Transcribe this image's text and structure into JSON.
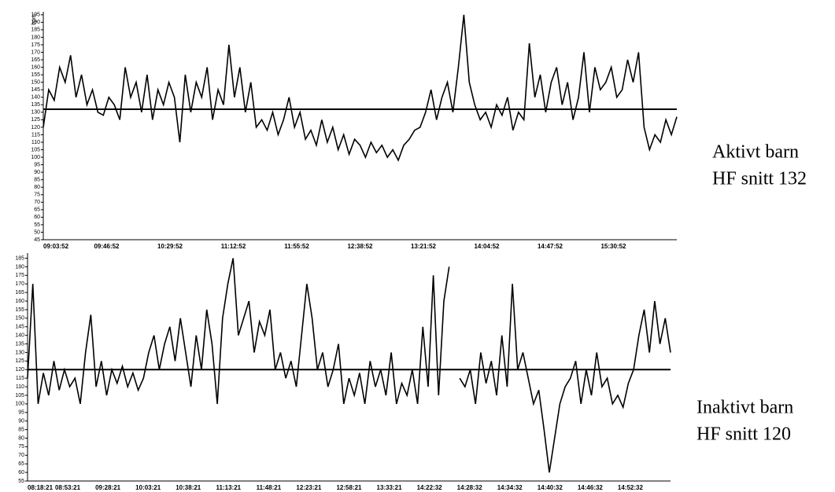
{
  "chart_data": [
    {
      "type": "line",
      "ylabel": "bpm",
      "color": "#000000",
      "x_labels": [
        "09:03:52",
        "09:46:52",
        "10:29:52",
        "11:12:52",
        "11:55:52",
        "12:38:52",
        "13:21:52",
        "14:04:52",
        "14:47:52",
        "15:30:52"
      ],
      "values": [
        120,
        145,
        138,
        160,
        150,
        168,
        140,
        155,
        135,
        145,
        130,
        128,
        140,
        135,
        125,
        160,
        140,
        150,
        130,
        155,
        125,
        145,
        135,
        150,
        140,
        110,
        155,
        130,
        150,
        140,
        160,
        125,
        145,
        135,
        175,
        140,
        160,
        130,
        150,
        120,
        125,
        118,
        130,
        115,
        125,
        140,
        120,
        130,
        112,
        118,
        108,
        125,
        110,
        120,
        105,
        115,
        102,
        112,
        108,
        100,
        110,
        103,
        108,
        100,
        105,
        98,
        108,
        112,
        118,
        120,
        130,
        145,
        125,
        140,
        150,
        130,
        160,
        195,
        150,
        135,
        125,
        130,
        120,
        135,
        128,
        140,
        118,
        130,
        125,
        176,
        140,
        155,
        130,
        150,
        160,
        135,
        150,
        125,
        140,
        170,
        130,
        160,
        145,
        150,
        160,
        140,
        145,
        165,
        150,
        170,
        120,
        105,
        115,
        110,
        125,
        115,
        127
      ],
      "ylim": [
        45,
        197
      ],
      "yticks": [
        45,
        50,
        55,
        60,
        65,
        70,
        75,
        80,
        85,
        90,
        95,
        100,
        105,
        110,
        115,
        120,
        125,
        130,
        135,
        140,
        145,
        150,
        155,
        160,
        165,
        170,
        175,
        180,
        185,
        190,
        195
      ],
      "mean": 132,
      "annotations": [
        "Aktivt barn",
        "HF snitt 132"
      ]
    },
    {
      "type": "line",
      "color": "#000000",
      "x_labels": [
        "08:18:21",
        "08:53:21",
        "09:28:21",
        "10:03:21",
        "10:38:21",
        "11:13:21",
        "11:48:21",
        "12:23:21",
        "12:58:21",
        "13:33:21",
        "14:22:32",
        "14:28:32",
        "14:34:32",
        "14:40:32",
        "14:46:32",
        "14:52:32"
      ],
      "values": [
        115,
        170,
        100,
        118,
        105,
        125,
        108,
        120,
        110,
        115,
        100,
        130,
        152,
        110,
        125,
        105,
        120,
        112,
        122,
        110,
        118,
        108,
        115,
        130,
        140,
        120,
        135,
        145,
        125,
        150,
        130,
        110,
        140,
        120,
        155,
        135,
        100,
        150,
        170,
        185,
        140,
        150,
        160,
        130,
        148,
        140,
        155,
        120,
        130,
        115,
        125,
        110,
        140,
        170,
        150,
        120,
        130,
        110,
        120,
        135,
        100,
        115,
        105,
        118,
        100,
        125,
        110,
        120,
        105,
        130,
        100,
        112,
        105,
        120,
        100,
        145,
        110,
        175,
        105,
        160,
        180,
        null,
        115,
        110,
        120,
        100,
        130,
        112,
        125,
        105,
        140,
        110,
        170,
        120,
        130,
        115,
        100,
        108,
        85,
        60,
        80,
        100,
        110,
        115,
        125,
        100,
        120,
        105,
        130,
        110,
        115,
        100,
        105,
        98,
        112,
        120,
        140,
        155,
        130,
        160,
        135,
        150,
        130
      ],
      "ylim": [
        55,
        188
      ],
      "yticks": [
        55,
        60,
        65,
        70,
        75,
        80,
        85,
        90,
        95,
        100,
        105,
        110,
        115,
        120,
        125,
        130,
        135,
        140,
        145,
        150,
        155,
        160,
        165,
        170,
        175,
        180,
        185
      ],
      "mean": 120,
      "annotations": [
        "Inaktivt barn",
        "HF snitt 120"
      ]
    }
  ]
}
